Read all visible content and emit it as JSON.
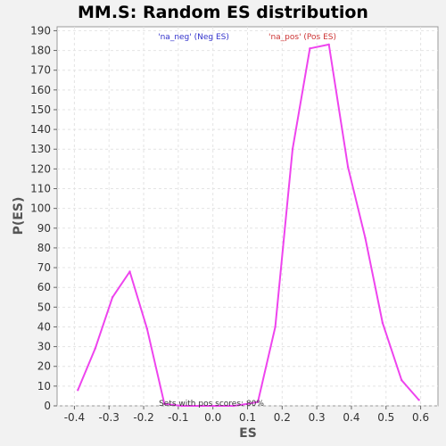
{
  "chart_data": {
    "type": "line",
    "title": "MM.S: Random ES distribution",
    "xlabel": "ES",
    "ylabel": "P(ES)",
    "xlim": [
      -0.45,
      0.65
    ],
    "ylim": [
      0,
      192
    ],
    "x_ticks": [
      -0.4,
      -0.3,
      -0.2,
      -0.1,
      0.0,
      0.1,
      0.2,
      0.3,
      0.4,
      0.5,
      0.6
    ],
    "x_tick_labels": [
      "-0.4",
      "-0.3",
      "-0.2",
      "-0.1",
      "0.0",
      "0.1",
      "0.2",
      "0.3",
      "0.4",
      "0.5",
      "0.6"
    ],
    "y_ticks": [
      0,
      10,
      20,
      30,
      40,
      50,
      60,
      70,
      80,
      90,
      100,
      110,
      120,
      130,
      140,
      150,
      160,
      170,
      180,
      190
    ],
    "y_tick_labels": [
      "0",
      "10",
      "20",
      "30",
      "40",
      "50",
      "60",
      "70",
      "80",
      "90",
      "100",
      "110",
      "120",
      "130",
      "140",
      "150",
      "160",
      "170",
      "180",
      "190"
    ],
    "grid": true,
    "legend": [
      {
        "label": "'na_neg' (Neg ES)",
        "color": "#3333cc"
      },
      {
        "label": "'na_pos' (Pos ES)",
        "color": "#cc3333"
      }
    ],
    "annotation": "Sets with pos scores: 80%",
    "series": [
      {
        "color": "#ee44ee",
        "x": [
          -0.39,
          -0.34,
          -0.29,
          -0.24,
          -0.19,
          -0.14,
          -0.09,
          -0.04,
          0.01,
          0.06,
          0.1,
          0.13,
          0.18,
          0.23,
          0.28,
          0.335,
          0.39,
          0.44,
          0.49,
          0.545,
          0.595
        ],
        "y": [
          8,
          29,
          55,
          68,
          39,
          1,
          0,
          0,
          0,
          0,
          1,
          2,
          40,
          130,
          181,
          183,
          121,
          85,
          42,
          13,
          3
        ]
      }
    ]
  }
}
